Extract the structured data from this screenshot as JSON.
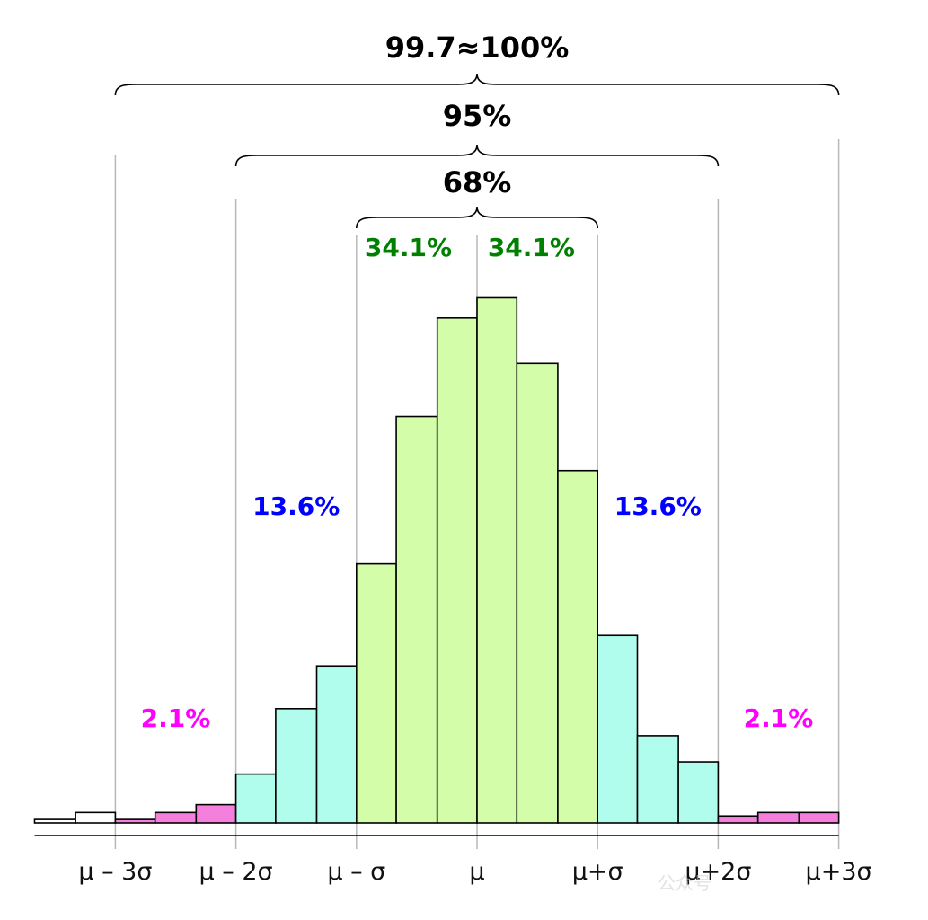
{
  "chart_data": {
    "type": "bar",
    "title": "",
    "xlabel": "",
    "ylabel": "",
    "x_ticks": [
      "μ – 3σ",
      "μ – 2σ",
      "μ – σ",
      "μ",
      "μ+σ",
      "μ+2σ",
      "μ+3σ"
    ],
    "tick_positions_sigma": [
      -3,
      -2,
      -1,
      0,
      1,
      2,
      3
    ],
    "bins": [
      {
        "x0": -3.67,
        "x1": -3.33,
        "value": 4,
        "zone": "outside"
      },
      {
        "x0": -3.33,
        "x1": -3.0,
        "value": 12,
        "zone": "outside"
      },
      {
        "x0": -3.0,
        "x1": -2.67,
        "value": 4,
        "zone": "tail"
      },
      {
        "x0": -2.67,
        "x1": -2.33,
        "value": 12,
        "zone": "tail"
      },
      {
        "x0": -2.33,
        "x1": -2.0,
        "value": 21,
        "zone": "tail"
      },
      {
        "x0": -2.0,
        "x1": -1.67,
        "value": 56,
        "zone": "mid"
      },
      {
        "x0": -1.67,
        "x1": -1.33,
        "value": 131,
        "zone": "mid"
      },
      {
        "x0": -1.33,
        "x1": -1.0,
        "value": 180,
        "zone": "mid"
      },
      {
        "x0": -1.0,
        "x1": -0.67,
        "value": 297,
        "zone": "core"
      },
      {
        "x0": -0.67,
        "x1": -0.33,
        "value": 466,
        "zone": "core"
      },
      {
        "x0": -0.33,
        "x1": 0.0,
        "value": 579,
        "zone": "core"
      },
      {
        "x0": 0.0,
        "x1": 0.33,
        "value": 602,
        "zone": "core"
      },
      {
        "x0": 0.33,
        "x1": 0.67,
        "value": 527,
        "zone": "core"
      },
      {
        "x0": 0.67,
        "x1": 1.0,
        "value": 404,
        "zone": "core"
      },
      {
        "x0": 1.0,
        "x1": 1.33,
        "value": 215,
        "zone": "mid"
      },
      {
        "x0": 1.33,
        "x1": 1.67,
        "value": 100,
        "zone": "mid"
      },
      {
        "x0": 1.67,
        "x1": 2.0,
        "value": 70,
        "zone": "mid"
      },
      {
        "x0": 2.0,
        "x1": 2.33,
        "value": 8,
        "zone": "tail"
      },
      {
        "x0": 2.33,
        "x1": 2.67,
        "value": 12,
        "zone": "tail"
      },
      {
        "x0": 2.67,
        "x1": 3.0,
        "value": 12,
        "zone": "tail"
      }
    ],
    "ylim": [
      0,
      620
    ],
    "xlim": [
      -3.67,
      3.0
    ],
    "grid": "vertical lines at integer sigma",
    "legend": "none",
    "zone_colors": {
      "outside": "#ffffff",
      "tail": "#f57fdd",
      "mid": "#b0fdee",
      "core": "#d4fdaa"
    },
    "region_labels": [
      {
        "text": "2.1%",
        "center_sigma": -2.5,
        "level": 0.19,
        "color": "#ff00ff"
      },
      {
        "text": "13.6%",
        "center_sigma": -1.5,
        "level": 0.58,
        "color": "#0000ff"
      },
      {
        "text": "34.1%",
        "center_sigma": -0.57,
        "level": 1.0,
        "color": "#008000"
      },
      {
        "text": "34.1%",
        "center_sigma": 0.45,
        "level": 1.0,
        "color": "#008000"
      },
      {
        "text": "13.6%",
        "center_sigma": 1.5,
        "level": 0.58,
        "color": "#0000ff"
      },
      {
        "text": "2.1%",
        "center_sigma": 2.5,
        "level": 0.19,
        "color": "#ff00ff"
      }
    ],
    "braces": [
      {
        "text": "68%",
        "from_sigma": -1,
        "to_sigma": 1
      },
      {
        "text": "95%",
        "from_sigma": -2,
        "to_sigma": 2
      },
      {
        "text": "99.7≈100%",
        "from_sigma": -3,
        "to_sigma": 3
      }
    ]
  },
  "watermark": "公众号"
}
